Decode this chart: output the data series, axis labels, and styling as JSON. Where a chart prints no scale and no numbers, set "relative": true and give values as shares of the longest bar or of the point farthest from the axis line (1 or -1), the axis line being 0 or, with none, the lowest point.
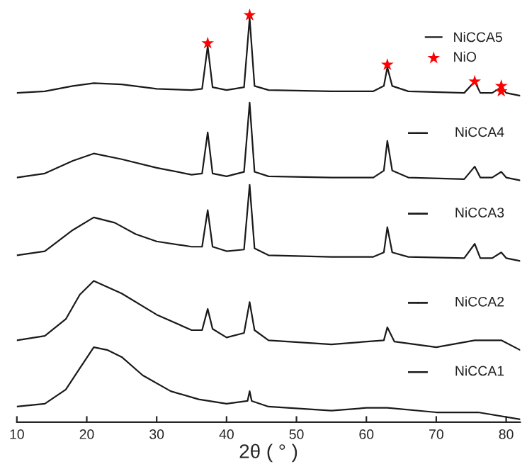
{
  "chart_data": {
    "type": "line",
    "relative": true,
    "xlabel": "2θ ( ° )",
    "xlim": [
      10,
      82
    ],
    "xticks": [
      10,
      20,
      30,
      40,
      50,
      60,
      70,
      80
    ],
    "grid": false,
    "legend": "top right",
    "tick_labels": "x",
    "marker": "none",
    "line_style": "solid",
    "series": [
      {
        "name": "NiCCA5",
        "color": "#1a1a1a",
        "x": [
          10,
          14,
          18,
          21,
          25,
          30,
          35,
          36.5,
          37.3,
          38,
          40,
          42.5,
          43.3,
          44,
          46,
          55,
          61,
          62.5,
          63,
          63.7,
          66,
          74,
          75.5,
          76.3,
          78,
          79.3,
          80,
          82
        ],
        "values": [
          0.809,
          0.813,
          0.826,
          0.833,
          0.83,
          0.819,
          0.816,
          0.819,
          0.924,
          0.823,
          0.816,
          0.823,
          0.993,
          0.826,
          0.816,
          0.813,
          0.813,
          0.826,
          0.872,
          0.826,
          0.813,
          0.809,
          0.837,
          0.809,
          0.809,
          0.823,
          0.809,
          0.802
        ]
      },
      {
        "name": "NiCCA4",
        "color": "#1a1a1a",
        "x": [
          10,
          14,
          18,
          21,
          25,
          30,
          35,
          36.5,
          37.3,
          38,
          40,
          42.5,
          43.3,
          44,
          46,
          55,
          61,
          62.5,
          63,
          63.7,
          66,
          74,
          75.5,
          76.3,
          78,
          79.3,
          80,
          82
        ],
        "values": [
          0.601,
          0.611,
          0.642,
          0.66,
          0.646,
          0.625,
          0.608,
          0.611,
          0.712,
          0.611,
          0.604,
          0.615,
          0.785,
          0.615,
          0.604,
          0.601,
          0.601,
          0.618,
          0.691,
          0.618,
          0.601,
          0.597,
          0.628,
          0.601,
          0.601,
          0.615,
          0.601,
          0.594
        ]
      },
      {
        "name": "NiCCA3",
        "color": "#1a1a1a",
        "x": [
          10,
          14,
          18,
          21,
          24,
          27,
          30,
          35,
          36.5,
          37.3,
          38,
          40,
          42.5,
          43.3,
          44,
          46,
          55,
          61,
          62.5,
          63,
          63.7,
          66,
          74,
          75.5,
          76.3,
          78,
          79.3,
          80,
          82
        ],
        "values": [
          0.41,
          0.42,
          0.472,
          0.503,
          0.49,
          0.462,
          0.444,
          0.431,
          0.431,
          0.521,
          0.431,
          0.42,
          0.424,
          0.583,
          0.427,
          0.41,
          0.406,
          0.406,
          0.417,
          0.479,
          0.417,
          0.406,
          0.403,
          0.438,
          0.403,
          0.403,
          0.417,
          0.403,
          0.396
        ]
      },
      {
        "name": "NiCCA2",
        "color": "#1a1a1a",
        "x": [
          10,
          14,
          17,
          19,
          21,
          25,
          30,
          35,
          36.5,
          37.3,
          38,
          40,
          42.5,
          43.3,
          44,
          46,
          55,
          62.5,
          63,
          64,
          70,
          75.5,
          79.3,
          82
        ],
        "values": [
          0.201,
          0.212,
          0.253,
          0.313,
          0.347,
          0.316,
          0.264,
          0.226,
          0.226,
          0.278,
          0.229,
          0.208,
          0.219,
          0.295,
          0.226,
          0.201,
          0.191,
          0.201,
          0.233,
          0.198,
          0.184,
          0.201,
          0.201,
          0.177
        ]
      },
      {
        "name": "NiCCA1",
        "color": "#1a1a1a",
        "x": [
          10,
          14,
          17,
          19,
          21,
          23,
          25,
          28,
          32,
          36,
          40,
          43,
          43.3,
          43.6,
          46,
          55,
          60,
          63,
          70,
          76,
          82
        ],
        "values": [
          0.038,
          0.045,
          0.08,
          0.132,
          0.184,
          0.177,
          0.16,
          0.115,
          0.076,
          0.056,
          0.045,
          0.052,
          0.076,
          0.052,
          0.038,
          0.028,
          0.035,
          0.035,
          0.024,
          0.024,
          0.007
        ]
      },
      {
        "name": "NiO",
        "type": "scatter",
        "marker": "star",
        "color": "#ff0000",
        "x": [
          37.3,
          43.3,
          63,
          75.5,
          79.3,
          79.3
        ],
        "values": [
          0.931,
          1.0,
          0.878,
          0.837,
          0.826,
          0.813
        ]
      }
    ]
  }
}
